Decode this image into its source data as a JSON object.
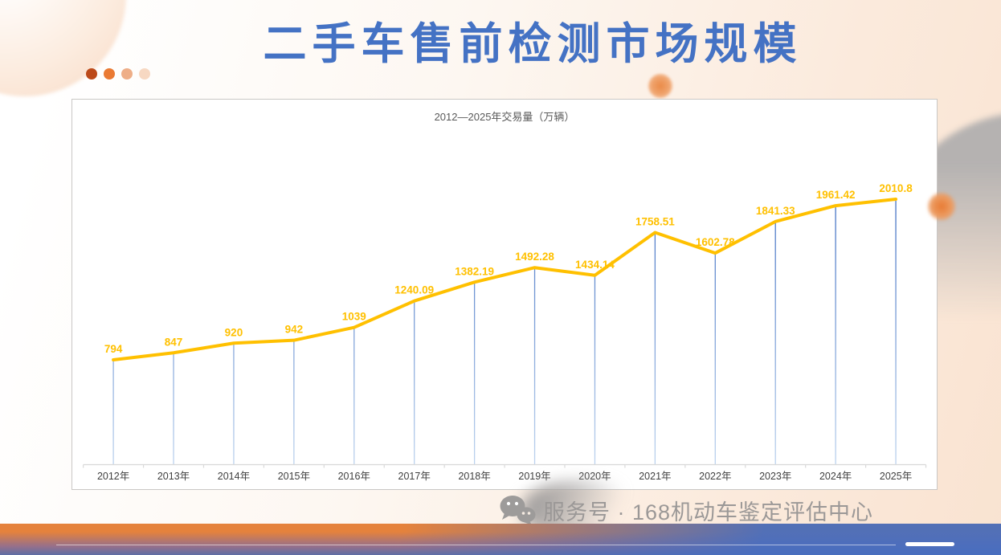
{
  "slide": {
    "title": "二手车售前检测市场规模"
  },
  "footer": {
    "watermark": "服务号 · 168机动车鉴定评估中心",
    "wechat_icon": "wechat-icon"
  },
  "colors": {
    "accent_line": "#FFC000",
    "data_label": "#FFC000",
    "drop_line_top": "#4472C4",
    "drop_line_bottom": "#BDD3EE",
    "axis_line": "#D9D9D9",
    "axis_label": "#404040",
    "chart_title": "#595959",
    "slide_title": "#4472C4",
    "watermark": "#9B9897",
    "footer_orange": "#E5823C",
    "footer_blue": "#4D74C4"
  },
  "decor": {
    "dot_colors": [
      "#BC4A1A",
      "#EA7A33",
      "#EEAE87",
      "#F7D8C2"
    ]
  },
  "chart_data": {
    "type": "line",
    "title": "2012—2025年交易量（万辆）",
    "series_name": "交易量",
    "categories": [
      "2012年",
      "2013年",
      "2014年",
      "2015年",
      "2016年",
      "2017年",
      "2018年",
      "2019年",
      "2020年",
      "2021年",
      "2022年",
      "2023年",
      "2024年",
      "2025年"
    ],
    "values": [
      794,
      847,
      920,
      942,
      1039,
      1240.09,
      1382.19,
      1492.28,
      1434.14,
      1758.51,
      1602.78,
      1841.33,
      1961.42,
      2010.8
    ],
    "labels": [
      "794",
      "847",
      "920",
      "942",
      "1039",
      "1240.09",
      "1382.19",
      "1492.28",
      "1434.14",
      "1758.51",
      "1602.78",
      "1841.33",
      "1961.42",
      "2010.8"
    ],
    "xlabel": "",
    "ylabel": "",
    "ylim": [
      0,
      2500
    ],
    "grid": false,
    "legend": "none",
    "drop_lines": true
  }
}
